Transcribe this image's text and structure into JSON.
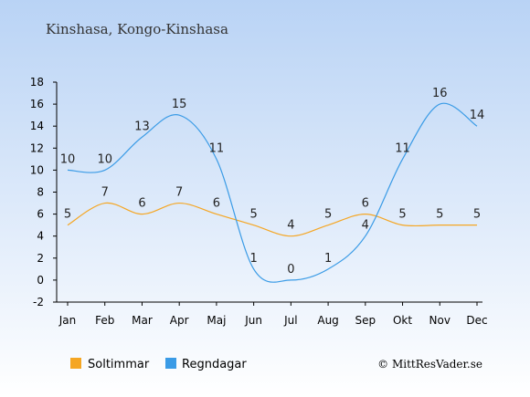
{
  "title": "Kinshasa, Kongo-Kinshasa",
  "copyright": "© MittResVader.se",
  "chart_data": {
    "type": "line",
    "title": "Kinshasa, Kongo-Kinshasa",
    "categories": [
      "Jan",
      "Feb",
      "Mar",
      "Apr",
      "Maj",
      "Jun",
      "Jul",
      "Aug",
      "Sep",
      "Okt",
      "Nov",
      "Dec"
    ],
    "ylim": [
      -2,
      18
    ],
    "yticks": [
      -2,
      0,
      2,
      4,
      6,
      8,
      10,
      12,
      14,
      16,
      18
    ],
    "grid": false,
    "legend_position": "bottom",
    "series": [
      {
        "name": "Soltimmar",
        "color": "#f5a623",
        "values": [
          5,
          7,
          6,
          7,
          6,
          5,
          4,
          5,
          6,
          5,
          5,
          5
        ]
      },
      {
        "name": "Regndagar",
        "color": "#3a9be6",
        "values": [
          10,
          10,
          13,
          15,
          11,
          1,
          0,
          1,
          4,
          11,
          16,
          14
        ]
      }
    ]
  }
}
